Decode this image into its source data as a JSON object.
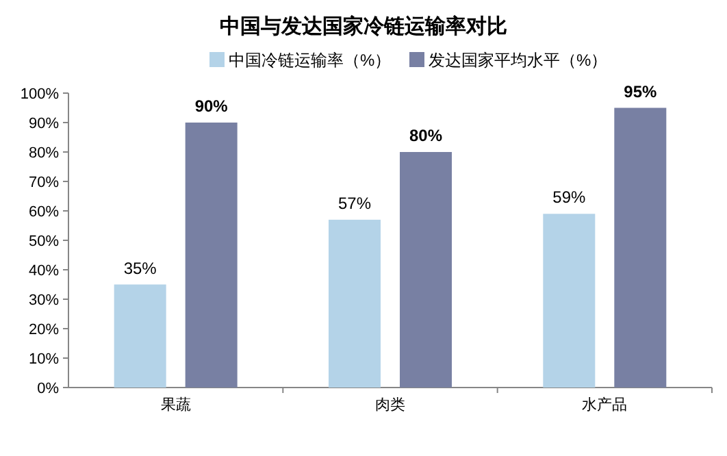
{
  "chart_data": {
    "type": "bar",
    "title": "中国与发达国家冷链运输率对比",
    "categories": [
      "果蔬",
      "肉类",
      "水产品"
    ],
    "series": [
      {
        "name": "中国冷链运输率（%）",
        "color": "#b4d3e8",
        "values": [
          35,
          57,
          59
        ],
        "value_labels": [
          "35%",
          "57%",
          "59%"
        ]
      },
      {
        "name": "发达国家平均水平（%）",
        "color": "#7880a3",
        "values": [
          90,
          80,
          95
        ],
        "value_labels": [
          "90%",
          "80%",
          "95%"
        ]
      }
    ],
    "ylim": [
      0,
      100
    ],
    "yticks": [
      {
        "value": 0,
        "label": "0%"
      },
      {
        "value": 10,
        "label": "10%"
      },
      {
        "value": 20,
        "label": "20%"
      },
      {
        "value": 30,
        "label": "30%"
      },
      {
        "value": 40,
        "label": "40%"
      },
      {
        "value": 50,
        "label": "50%"
      },
      {
        "value": 60,
        "label": "60%"
      },
      {
        "value": 70,
        "label": "70%"
      },
      {
        "value": 80,
        "label": "80%"
      },
      {
        "value": 90,
        "label": "90%"
      },
      {
        "value": 100,
        "label": "100%"
      }
    ],
    "legend": "top"
  }
}
